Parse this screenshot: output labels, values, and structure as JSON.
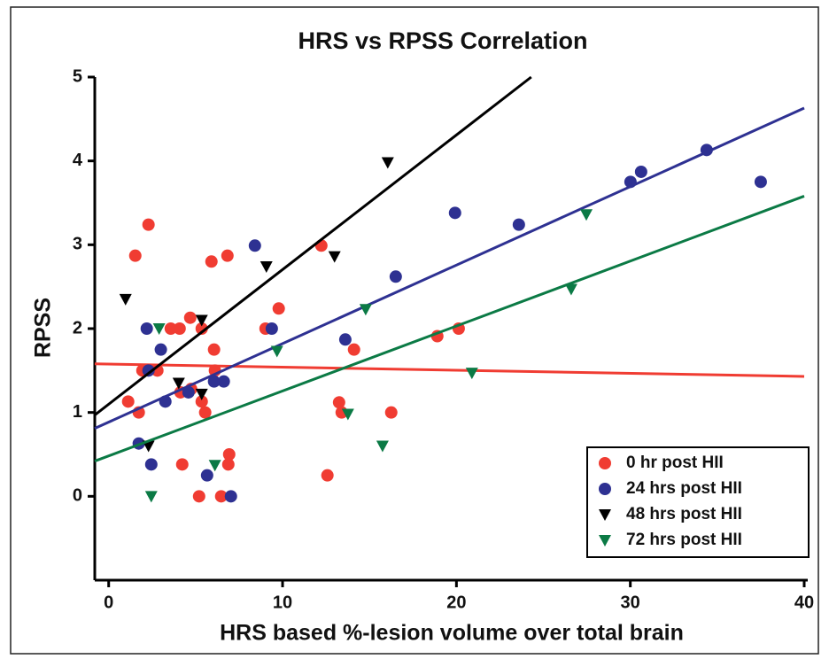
{
  "chart_data": {
    "type": "scatter",
    "title": "HRS vs RPSS Correlation",
    "x_label": "HRS based %-lesion volume over total brain",
    "y_label": "RPSS",
    "xlim": [
      -0.8,
      40
    ],
    "ylim": [
      -1,
      5
    ],
    "xticks": [
      0,
      10,
      20,
      30,
      40
    ],
    "yticks": [
      0,
      1,
      2,
      3,
      4,
      5
    ],
    "legend": "lower right",
    "series": [
      {
        "name": "0 hr post HII",
        "color": "#f03c32",
        "marker": "circle",
        "x": [
          1.12,
          1.53,
          1.73,
          1.94,
          2.29,
          2.8,
          3.57,
          4.08,
          4.69,
          4.13,
          4.74,
          4.23,
          5.35,
          5.35,
          5.55,
          5.2,
          5.91,
          6.06,
          6.11,
          6.83,
          6.47,
          6.88,
          6.93,
          9.02,
          9.78,
          12.23,
          12.58,
          13.25,
          13.4,
          14.11,
          16.25,
          18.9,
          20.13
        ],
        "values": [
          1.13,
          2.87,
          1.0,
          1.5,
          3.24,
          1.5,
          2.0,
          2.0,
          2.13,
          1.24,
          1.28,
          0.38,
          2.0,
          1.13,
          1.0,
          0,
          2.8,
          1.75,
          1.5,
          2.87,
          0,
          0.38,
          0.5,
          2.0,
          2.24,
          2.99,
          0.25,
          1.12,
          1.0,
          1.75,
          1.0,
          1.91,
          2.0
        ],
        "fit": {
          "x": [
            -0.8,
            40
          ],
          "y": [
            1.58,
            1.43
          ]
        }
      },
      {
        "name": "24 hrs post HII",
        "color": "#2e3192",
        "marker": "circle",
        "x": [
          1.73,
          2.19,
          2.29,
          2.45,
          3.0,
          3.26,
          4.59,
          5.66,
          6.06,
          6.62,
          7.03,
          8.41,
          9.38,
          13.61,
          16.51,
          19.92,
          23.59,
          30.01,
          30.62,
          34.39,
          37.5
        ],
        "values": [
          0.63,
          2.0,
          1.5,
          0.38,
          1.75,
          1.13,
          1.24,
          0.25,
          1.37,
          1.37,
          0,
          2.99,
          2.0,
          1.87,
          2.62,
          3.38,
          3.24,
          3.75,
          3.87,
          4.13,
          3.75
        ],
        "fit": {
          "x": [
            -0.8,
            40
          ],
          "y": [
            0.81,
            4.63
          ]
        }
      },
      {
        "name": "48 hrs post HII",
        "color": "#000000",
        "marker": "triangle",
        "x": [
          0.97,
          2.29,
          4.03,
          5.35,
          5.35,
          9.07,
          12.99,
          16.05
        ],
        "values": [
          2.35,
          0.6,
          1.35,
          2.1,
          1.22,
          2.74,
          2.86,
          3.98
        ],
        "fit": {
          "x": [
            -0.8,
            24.3
          ],
          "y": [
            0.97,
            5
          ]
        }
      },
      {
        "name": "72 hrs post HII",
        "color": "#0b7a45",
        "marker": "triangle",
        "x": [
          2.45,
          2.9,
          6.11,
          9.68,
          13.76,
          14.78,
          15.75,
          20.89,
          26.6,
          27.47
        ],
        "values": [
          0,
          2.0,
          0.37,
          1.73,
          0.98,
          2.23,
          0.6,
          1.47,
          2.47,
          3.36
        ],
        "fit": {
          "x": [
            -0.8,
            40
          ],
          "y": [
            0.42,
            3.58
          ]
        }
      }
    ]
  }
}
